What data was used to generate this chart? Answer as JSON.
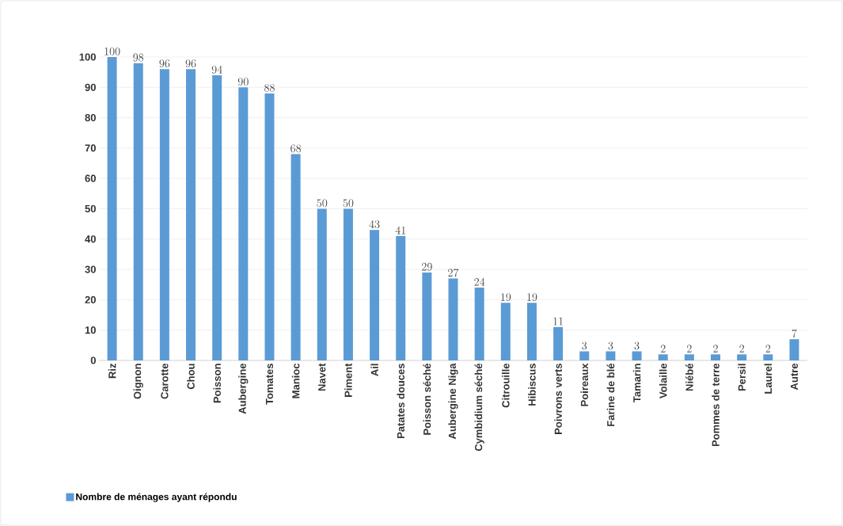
{
  "chart_data": {
    "type": "bar",
    "categories": [
      "Riz",
      "Oignon",
      "Carotte",
      "Chou",
      "Poisson",
      "Aubergine",
      "Tomates",
      "Manioc",
      "Navet",
      "Piment",
      "Ail",
      "Patates douces",
      "Poisson séché",
      "Aubergine Niga",
      "Cymbidium séché",
      "Citrouille",
      "Hibiscus",
      "Poivrons verts",
      "Poireaux",
      "Farine de blé",
      "Tamarin",
      "Volaille",
      "Niébé",
      "Pommes de terre",
      "Persil",
      "Laurel",
      "Autre"
    ],
    "series": [
      {
        "name": "Nombre de ménages ayant répondu",
        "color": "#5b9bd5",
        "values": [
          100,
          98,
          96,
          96,
          94,
          90,
          88,
          68,
          50,
          50,
          43,
          41,
          29,
          27,
          24,
          19,
          19,
          11,
          3,
          3,
          3,
          2,
          2,
          2,
          2,
          2,
          7
        ]
      }
    ],
    "ylim": [
      0,
      100
    ],
    "yticks": [
      0,
      10,
      20,
      30,
      40,
      50,
      60,
      70,
      80,
      90,
      100
    ],
    "grid": "y",
    "legend": "bottom left",
    "data_labels": true
  }
}
